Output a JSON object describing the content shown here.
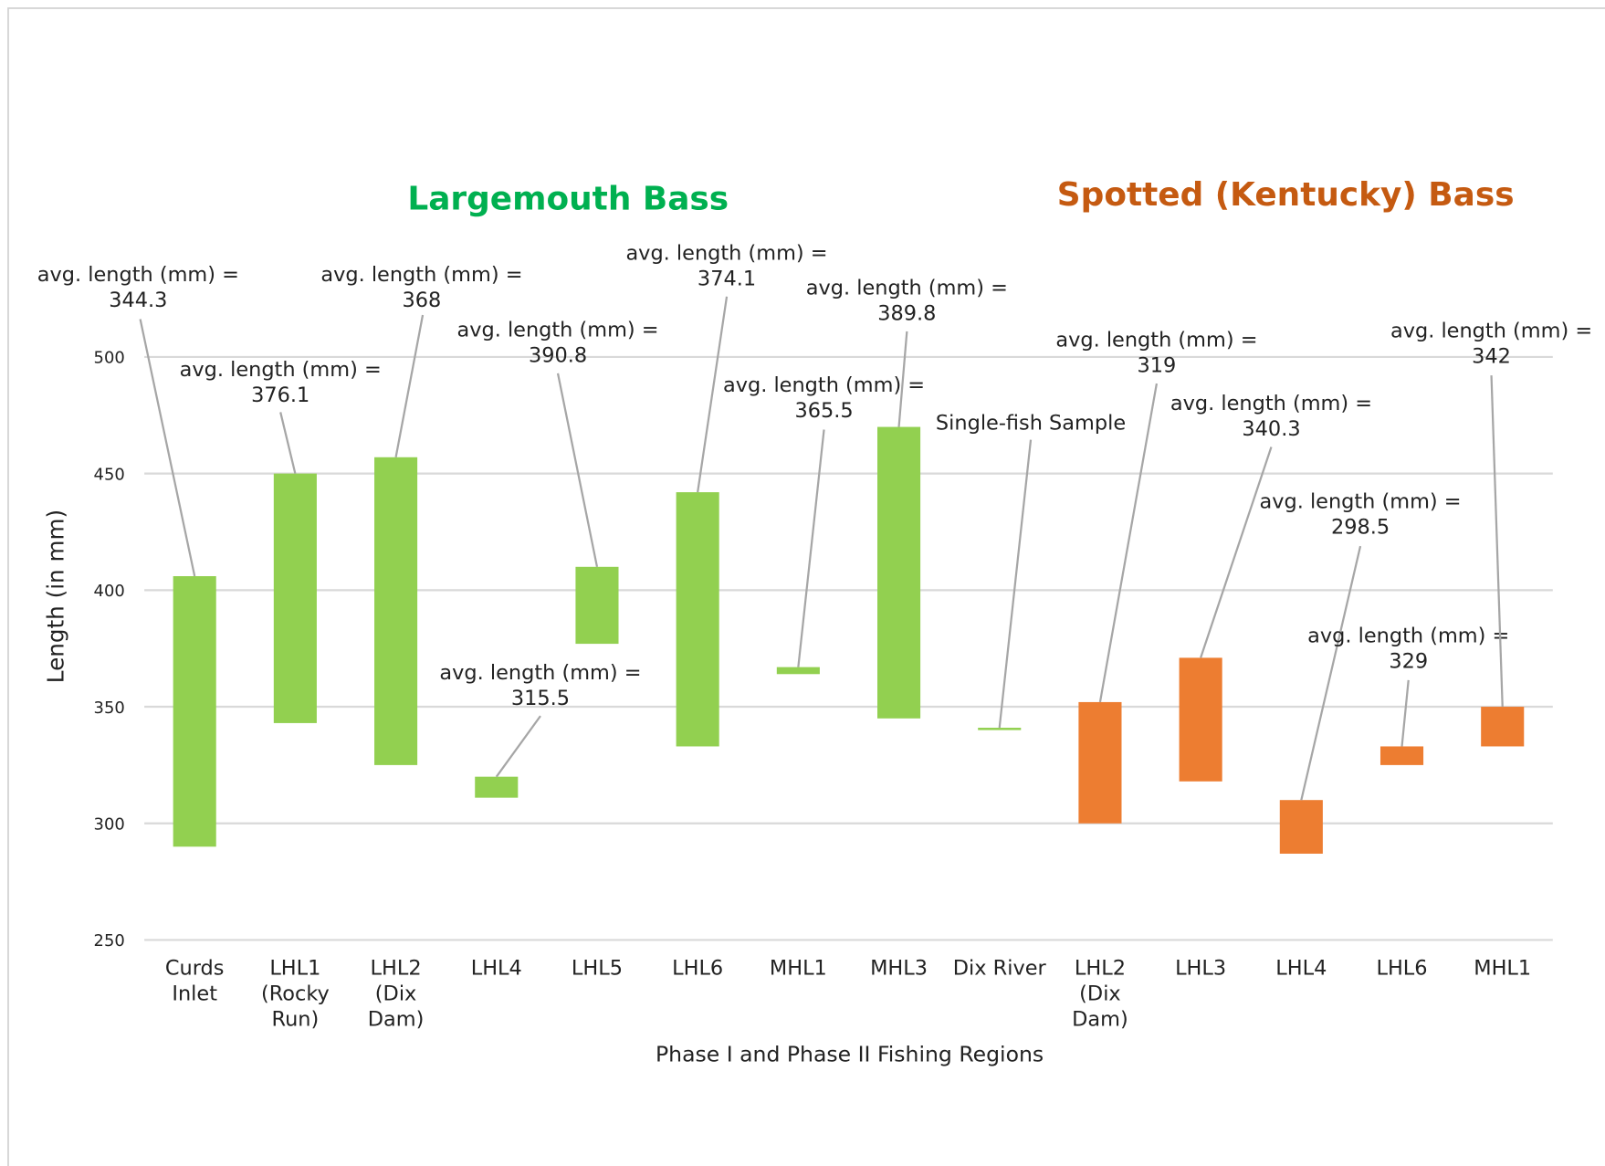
{
  "chart_data": {
    "type": "floating-bar",
    "x_label": "Phase I and Phase II Fishing Regions",
    "y_label": "Length  (in mm)",
    "categories": [
      [
        "Curds",
        "Inlet"
      ],
      [
        "LHL1",
        "(Rocky",
        "Run)"
      ],
      [
        "LHL2",
        "(Dix",
        "Dam)"
      ],
      [
        "LHL4"
      ],
      [
        "LHL5"
      ],
      [
        "LHL6"
      ],
      [
        "MHL1"
      ],
      [
        "MHL3"
      ],
      [
        "Dix River"
      ],
      [
        "LHL2",
        "(Dix",
        "Dam)"
      ],
      [
        "LHL3"
      ],
      [
        "LHL4"
      ],
      [
        "LHL6"
      ],
      [
        "MHL1"
      ]
    ],
    "series": [
      {
        "name": "Largemouth Bass",
        "color": "#92d050",
        "title_color": "#00b050",
        "low": [
          290,
          343,
          325,
          311,
          377,
          333,
          364,
          345,
          340,
          null,
          null,
          null,
          null,
          null
        ],
        "high": [
          406,
          450,
          457,
          320,
          410,
          442,
          367,
          470,
          341,
          null,
          null,
          null,
          null,
          null
        ]
      },
      {
        "name": "Spotted (Kentucky)  Bass",
        "color": "#ed7d31",
        "title_color": "#c55a11",
        "low": [
          null,
          null,
          null,
          null,
          null,
          null,
          null,
          null,
          null,
          300,
          318,
          287,
          325,
          333
        ],
        "high": [
          null,
          null,
          null,
          null,
          null,
          null,
          null,
          null,
          null,
          352,
          371,
          310,
          333,
          350
        ]
      }
    ],
    "annotations": [
      {
        "text": "avg. length (mm) =",
        "value": 344.3
      },
      {
        "text": "avg. length (mm) =",
        "value": 376.1
      },
      {
        "text": "avg. length (mm) =",
        "value": 368
      },
      {
        "text": "avg. length (mm) =",
        "value": 315.5
      },
      {
        "text": "avg. length (mm) =",
        "value": 390.8
      },
      {
        "text": "avg. length (mm) =",
        "value": 374.1
      },
      {
        "text": "avg. length (mm) =",
        "value": 365.5
      },
      {
        "text": "avg. length (mm) =",
        "value": 389.8
      },
      {
        "text": "Single-fish Sample"
      },
      {
        "text": "avg. length (mm) =",
        "value": 319
      },
      {
        "text": "avg. length (mm) =",
        "value": 340.3
      },
      {
        "text": "avg. length (mm) =",
        "value": 298.5
      },
      {
        "text": "avg. length (mm) =",
        "value": 329
      },
      {
        "text": "avg. length (mm) =",
        "value": 342
      }
    ],
    "ylim": [
      250,
      500
    ],
    "yticks": [
      250,
      300,
      350,
      400,
      450,
      500
    ],
    "grid": true
  }
}
